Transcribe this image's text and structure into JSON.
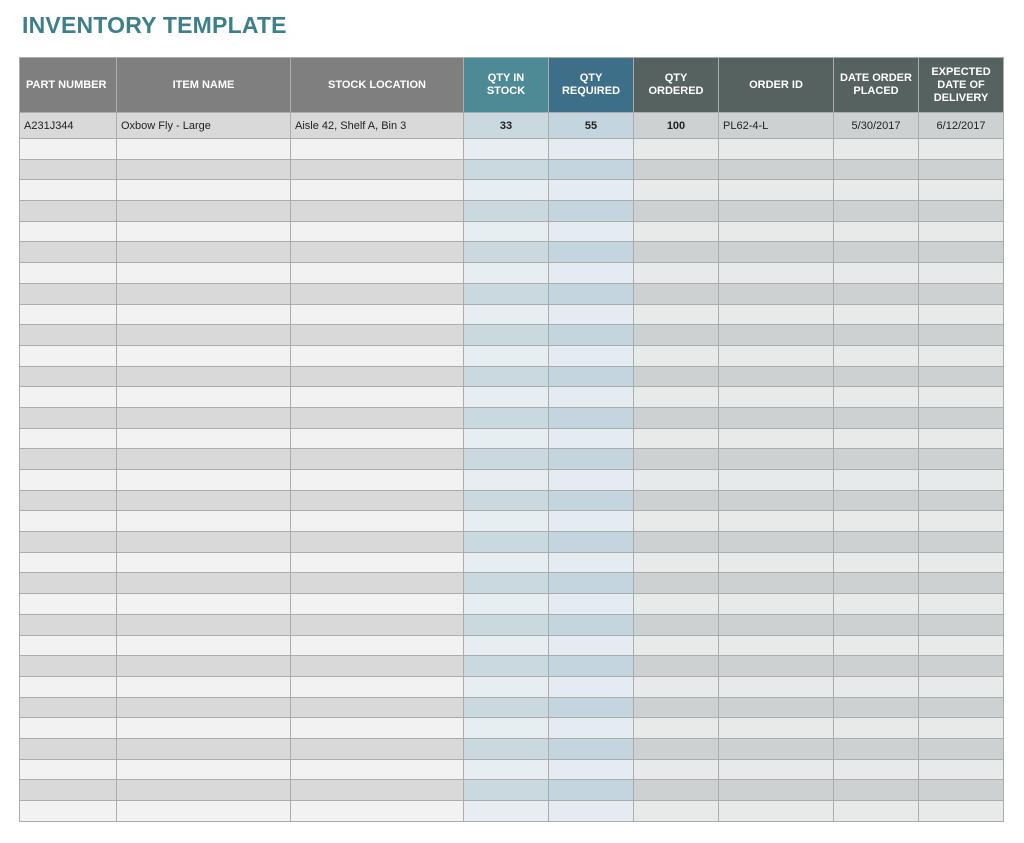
{
  "title": "INVENTORY TEMPLATE",
  "headers": [
    "PART NUMBER",
    "ITEM NAME",
    "STOCK LOCATION",
    "QTY IN STOCK",
    "QTY REQUIRED",
    "QTY ORDERED",
    "ORDER ID",
    "DATE ORDER PLACED",
    "EXPECTED DATE OF DELIVERY"
  ],
  "rows": [
    [
      "A231J344",
      "Oxbow Fly - Large",
      "Aisle 42, Shelf A, Bin 3",
      "33",
      "55",
      "100",
      "PL62-4-L",
      "5/30/2017",
      "6/12/2017"
    ]
  ],
  "colors": {
    "title": "#3f7f88",
    "header_gray": "#7f7f7f",
    "header_teal": "#4e8a95",
    "header_blue": "#3e6f88",
    "header_dark": "#56625f"
  }
}
